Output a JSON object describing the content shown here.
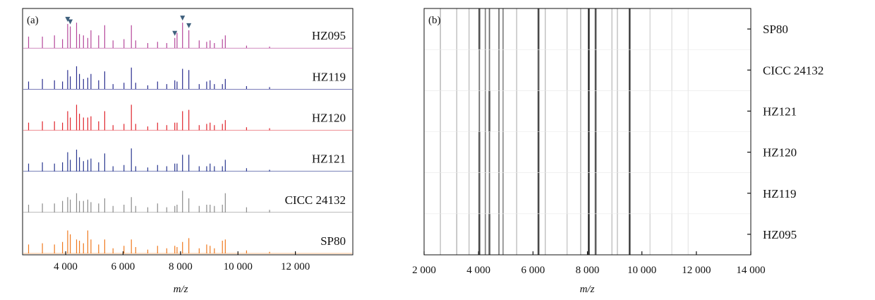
{
  "chart_data": [
    {
      "panel": "(a)",
      "type": "line",
      "xlabel": "m/z",
      "xlim": [
        2500,
        14000
      ],
      "xticks": [
        4000,
        6000,
        8000,
        10000,
        12000
      ],
      "xtick_labels": [
        "4 000",
        "6 000",
        "8 000",
        "10 000",
        "12 000"
      ],
      "peaks_mz": [
        2710,
        3190,
        3610,
        3890,
        4070,
        4160,
        4380,
        4480,
        4620,
        4770,
        4880,
        5150,
        5360,
        5650,
        6030,
        6290,
        6440,
        6860,
        7200,
        7520,
        7800,
        7880,
        8070,
        8290,
        8650,
        8910,
        9030,
        9180,
        9460,
        9560,
        10300,
        11100
      ],
      "marked_peaks_mz": [
        4070,
        4160,
        7800,
        8070,
        8290
      ],
      "series": [
        {
          "name": "HZ095",
          "color": "#b5479b",
          "intensities": [
            0.45,
            0.45,
            0.5,
            0.35,
            0.95,
            0.85,
            1.0,
            0.55,
            0.5,
            0.4,
            0.7,
            0.5,
            0.9,
            0.3,
            0.35,
            0.9,
            0.3,
            0.2,
            0.25,
            0.2,
            0.4,
            0.6,
            1.0,
            0.7,
            0.3,
            0.25,
            0.3,
            0.2,
            0.35,
            0.5,
            0.1,
            0.06
          ]
        },
        {
          "name": "HZ119",
          "color": "#2b2f8f",
          "intensities": [
            0.3,
            0.4,
            0.35,
            0.3,
            0.75,
            0.5,
            0.9,
            0.6,
            0.4,
            0.45,
            0.6,
            0.35,
            0.7,
            0.2,
            0.25,
            0.85,
            0.25,
            0.15,
            0.3,
            0.2,
            0.35,
            0.3,
            0.8,
            0.75,
            0.2,
            0.3,
            0.35,
            0.2,
            0.2,
            0.4,
            0.12,
            0.08
          ]
        },
        {
          "name": "HZ120",
          "color": "#e0262e",
          "intensities": [
            0.3,
            0.35,
            0.35,
            0.3,
            0.75,
            0.5,
            1.0,
            0.65,
            0.5,
            0.5,
            0.55,
            0.35,
            0.75,
            0.2,
            0.25,
            1.0,
            0.25,
            0.15,
            0.3,
            0.2,
            0.3,
            0.3,
            0.75,
            0.8,
            0.2,
            0.25,
            0.3,
            0.2,
            0.25,
            0.4,
            0.12,
            0.08
          ]
        },
        {
          "name": "HZ121",
          "color": "#2b3990",
          "intensities": [
            0.3,
            0.35,
            0.3,
            0.35,
            0.75,
            0.45,
            0.85,
            0.55,
            0.4,
            0.45,
            0.5,
            0.35,
            0.7,
            0.2,
            0.25,
            0.9,
            0.2,
            0.15,
            0.25,
            0.2,
            0.3,
            0.3,
            0.65,
            0.65,
            0.2,
            0.2,
            0.3,
            0.2,
            0.2,
            0.45,
            0.12,
            0.06
          ]
        },
        {
          "name": "CICC 24132",
          "color": "#8c8c8c",
          "intensities": [
            0.3,
            0.35,
            0.35,
            0.45,
            0.6,
            0.5,
            0.75,
            0.45,
            0.45,
            0.5,
            0.4,
            0.35,
            0.55,
            0.25,
            0.3,
            0.6,
            0.25,
            0.2,
            0.35,
            0.2,
            0.25,
            0.3,
            0.85,
            0.55,
            0.25,
            0.3,
            0.3,
            0.25,
            0.3,
            0.75,
            0.2,
            0.1
          ]
        },
        {
          "name": "SP80",
          "color": "#f07a1f",
          "intensities": [
            0.35,
            0.4,
            0.35,
            0.45,
            0.9,
            0.75,
            0.55,
            0.5,
            0.4,
            0.9,
            0.55,
            0.35,
            0.55,
            0.2,
            0.3,
            0.55,
            0.25,
            0.15,
            0.3,
            0.2,
            0.3,
            0.25,
            0.45,
            0.6,
            0.2,
            0.35,
            0.3,
            0.2,
            0.5,
            0.55,
            0.12,
            0.06
          ]
        }
      ]
    },
    {
      "panel": "(b)",
      "type": "heatmap",
      "xlabel": "m/z",
      "xlim": [
        2000,
        14000
      ],
      "xticks": [
        2000,
        4000,
        6000,
        8000,
        10000,
        12000,
        14000
      ],
      "xtick_labels": [
        "2 000",
        "4 000",
        "6 000",
        "8 000",
        "10 000",
        "12 000",
        "14 000"
      ],
      "rows": [
        "SP80",
        "CICC 24132",
        "HZ121",
        "HZ120",
        "HZ119",
        "HZ095"
      ],
      "bands": [
        {
          "mz": 2600,
          "intensity": [
            0.35,
            0.35,
            0.3,
            0.3,
            0.3,
            0.3
          ]
        },
        {
          "mz": 3200,
          "intensity": [
            0.3,
            0.3,
            0.3,
            0.3,
            0.3,
            0.35
          ]
        },
        {
          "mz": 3650,
          "intensity": [
            0.3,
            0.3,
            0.25,
            0.25,
            0.25,
            0.3
          ]
        },
        {
          "mz": 4030,
          "intensity": [
            0.8,
            0.65,
            0.7,
            0.75,
            0.75,
            0.85
          ]
        },
        {
          "mz": 4250,
          "intensity": [
            0.55,
            0.5,
            0.5,
            0.55,
            0.5,
            0.55
          ]
        },
        {
          "mz": 4400,
          "intensity": [
            0.7,
            0.6,
            0.75,
            0.7,
            0.7,
            0.75
          ]
        },
        {
          "mz": 4750,
          "intensity": [
            0.65,
            0.6,
            0.6,
            0.6,
            0.6,
            0.6
          ]
        },
        {
          "mz": 4900,
          "intensity": [
            0.55,
            0.5,
            0.45,
            0.5,
            0.5,
            0.5
          ]
        },
        {
          "mz": 5400,
          "intensity": [
            0.3,
            0.3,
            0.3,
            0.3,
            0.3,
            0.3
          ]
        },
        {
          "mz": 6200,
          "intensity": [
            0.85,
            0.75,
            0.85,
            0.85,
            0.85,
            0.85
          ]
        },
        {
          "mz": 6450,
          "intensity": [
            0.3,
            0.3,
            0.3,
            0.3,
            0.3,
            0.3
          ]
        },
        {
          "mz": 7250,
          "intensity": [
            0.25,
            0.25,
            0.2,
            0.2,
            0.2,
            0.25
          ]
        },
        {
          "mz": 7750,
          "intensity": [
            0.4,
            0.35,
            0.35,
            0.35,
            0.35,
            0.35
          ]
        },
        {
          "mz": 8050,
          "intensity": [
            0.95,
            0.95,
            0.9,
            0.9,
            0.9,
            0.95
          ]
        },
        {
          "mz": 8300,
          "intensity": [
            0.8,
            0.8,
            0.75,
            0.8,
            0.75,
            0.75
          ]
        },
        {
          "mz": 8900,
          "intensity": [
            0.3,
            0.3,
            0.25,
            0.25,
            0.25,
            0.3
          ]
        },
        {
          "mz": 9100,
          "intensity": [
            0.3,
            0.3,
            0.3,
            0.3,
            0.3,
            0.3
          ]
        },
        {
          "mz": 9550,
          "intensity": [
            0.85,
            0.85,
            0.8,
            0.8,
            0.8,
            0.85
          ]
        },
        {
          "mz": 10300,
          "intensity": [
            0.2,
            0.2,
            0.15,
            0.15,
            0.15,
            0.2
          ]
        },
        {
          "mz": 11100,
          "intensity": [
            0.15,
            0.15,
            0.1,
            0.1,
            0.1,
            0.15
          ]
        },
        {
          "mz": 11700,
          "intensity": [
            0.1,
            0.1,
            0.08,
            0.08,
            0.08,
            0.1
          ]
        }
      ]
    }
  ]
}
